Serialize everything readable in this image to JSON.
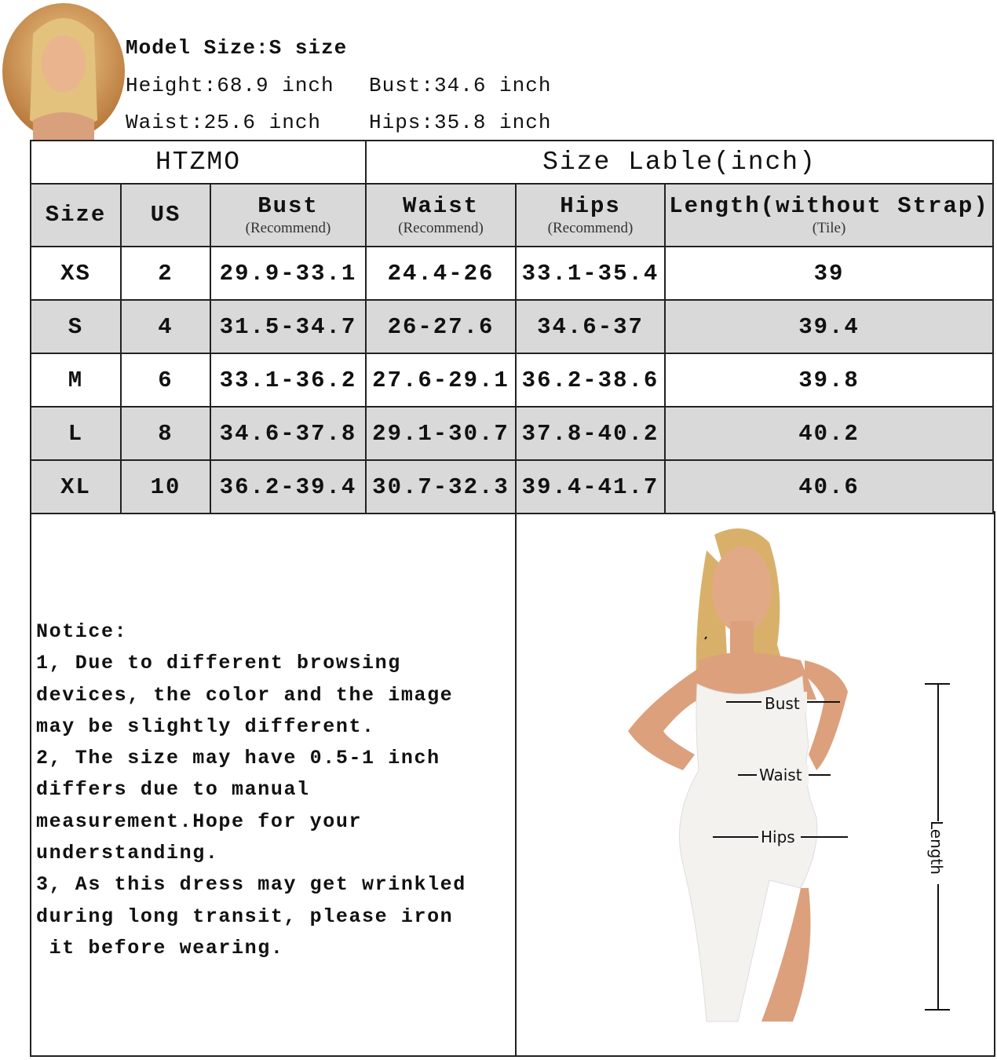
{
  "model_info": {
    "title": "Model Size:S size",
    "height": "Height:68.9 inch",
    "bust": "Bust:34.6 inch",
    "waist": "Waist:25.6 inch",
    "hips": "Hips:35.8 inch"
  },
  "table": {
    "brand": "HTZMO",
    "caption": "Size Lable(inch)",
    "headers": [
      {
        "label": "Size",
        "sub": ""
      },
      {
        "label": "US",
        "sub": ""
      },
      {
        "label": "Bust",
        "sub": "(Recommend)"
      },
      {
        "label": "Waist",
        "sub": "(Recommend)"
      },
      {
        "label": "Hips",
        "sub": "(Recommend)"
      },
      {
        "label": "Length(without Strap)",
        "sub": "(Tile)"
      }
    ],
    "rows": [
      [
        "XS",
        "2",
        "29.9-33.1",
        "24.4-26",
        "33.1-35.4",
        "39"
      ],
      [
        "S",
        "4",
        "31.5-34.7",
        "26-27.6",
        "34.6-37",
        "39.4"
      ],
      [
        "M",
        "6",
        "33.1-36.2",
        "27.6-29.1",
        "36.2-38.6",
        "39.8"
      ],
      [
        "L",
        "8",
        "34.6-37.8",
        "29.1-30.7",
        "37.8-40.2",
        "40.2"
      ],
      [
        "XL",
        "10",
        "36.2-39.4",
        "30.7-32.3",
        "39.4-41.7",
        "40.6"
      ]
    ],
    "row_shading": [
      "white",
      "grey",
      "white",
      "grey",
      "grey"
    ],
    "shade_color": "#d9d9d9"
  },
  "notice": "Notice:\n1, Due to different browsing\ndevices, the color and the image\nmay be slightly different.\n2, The size may have 0.5-1 inch\ndiffers due to manual\nmeasurement.Hope for your\nunderstanding.\n3, As this dress may get wrinkled\nduring long transit, please iron\n it before wearing.",
  "diagram": {
    "bust": "Bust",
    "waist": "Waist",
    "hips": "Hips",
    "length": "Length"
  }
}
